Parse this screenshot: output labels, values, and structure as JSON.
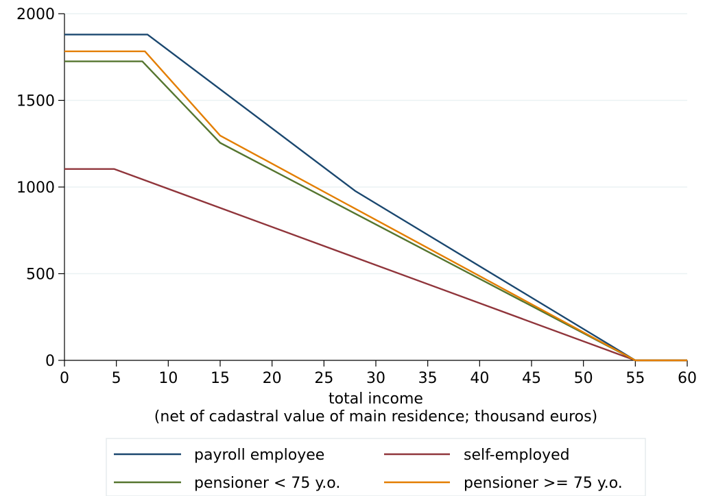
{
  "chart_data": {
    "type": "line",
    "title": "",
    "xlabel": "total income",
    "xlabel_sub": "(net of cadastral value of main residence; thousand euros)",
    "ylabel": "",
    "xlim": [
      0,
      60
    ],
    "ylim": [
      0,
      2000
    ],
    "x_ticks": [
      0,
      5,
      10,
      15,
      20,
      25,
      30,
      35,
      40,
      45,
      50,
      55,
      60
    ],
    "y_ticks": [
      0,
      500,
      1000,
      1500,
      2000
    ],
    "grid": "horizontal",
    "legend": "bottom",
    "series": [
      {
        "name": "payroll employee",
        "color": "#1a476f",
        "points": [
          [
            0,
            1880
          ],
          [
            8,
            1880
          ],
          [
            28,
            978
          ],
          [
            55,
            0
          ],
          [
            60,
            0
          ]
        ]
      },
      {
        "name": "self-employed",
        "color": "#90353b",
        "points": [
          [
            0,
            1104
          ],
          [
            4.8,
            1104
          ],
          [
            55,
            0
          ],
          [
            60,
            0
          ]
        ]
      },
      {
        "name": "pensioner < 75 y.o.",
        "color": "#55752f",
        "points": [
          [
            0,
            1725
          ],
          [
            7.5,
            1725
          ],
          [
            15,
            1255
          ],
          [
            55,
            0
          ],
          [
            60,
            0
          ]
        ]
      },
      {
        "name": "pensioner >= 75 y.o.",
        "color": "#e37e00",
        "points": [
          [
            0,
            1783
          ],
          [
            7.75,
            1783
          ],
          [
            15,
            1297
          ],
          [
            55,
            0
          ],
          [
            60,
            0
          ]
        ]
      }
    ]
  }
}
